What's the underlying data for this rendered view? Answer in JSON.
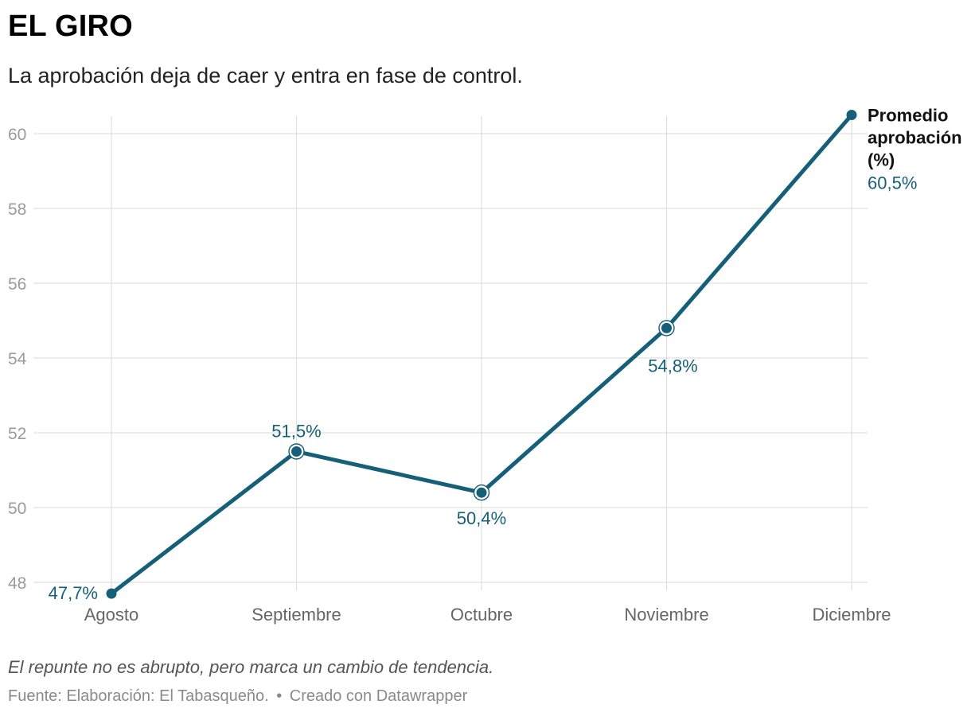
{
  "header": {
    "title": "EL GIRO",
    "subtitle": "La aprobación deja de caer y entra en fase de control."
  },
  "chart_data": {
    "type": "line",
    "title": "EL GIRO",
    "subtitle": "La aprobación deja de caer y entra en fase de control.",
    "categories": [
      "Agosto",
      "Septiembre",
      "Octubre",
      "Noviembre",
      "Diciembre"
    ],
    "series": [
      {
        "name": "Promedio aprobación (%)",
        "name_lines": [
          "Promedio",
          "aprobación",
          "(%)"
        ],
        "values": [
          47.7,
          51.5,
          50.4,
          54.8,
          60.5
        ],
        "labels": [
          "47,7%",
          "51,5%",
          "50,4%",
          "54,8%",
          "60,5%"
        ],
        "color": "#155f79"
      }
    ],
    "yticks": [
      48,
      50,
      52,
      54,
      56,
      58,
      60
    ],
    "ylim": [
      47.7,
      60.5
    ],
    "xlabel": "",
    "ylabel": "",
    "grid": true
  },
  "footer": {
    "note": "El repunte no es abrupto, pero marca un cambio de tendencia.",
    "source": "Fuente: Elaboración: El Tabasqueño.",
    "separator": "•",
    "credit": "Creado con Datawrapper"
  },
  "colors": {
    "line": "#155f79",
    "grid": "#e0e0e0",
    "tick_text": "#9a9a9a",
    "x_text": "#666666"
  }
}
